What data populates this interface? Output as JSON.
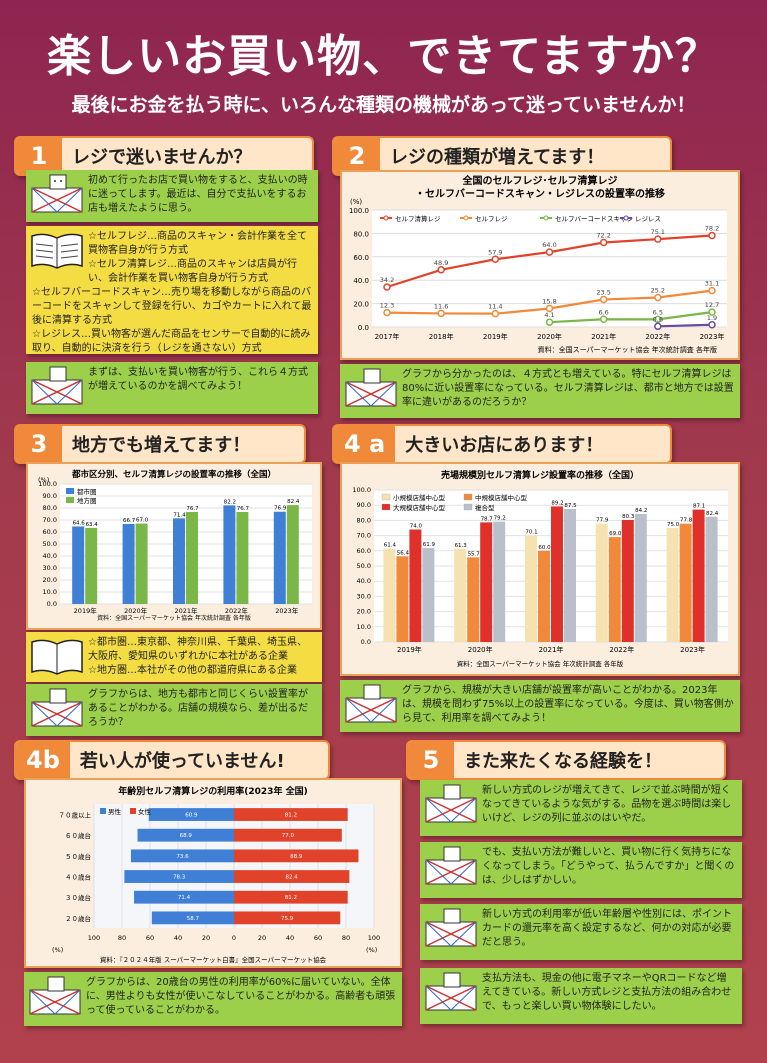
{
  "header": {
    "title": "楽しいお買い物、できてますか？",
    "subtitle": "最後にお金を払う時に、いろんな種類の機械があって迷っていませんか！"
  },
  "s1": {
    "num": "1",
    "title": "レジで迷いませんか？",
    "note1": "初めて行ったお店で買い物をすると、支払いの時に迷ってします。最近は、自分で支払いをするお店も増えたように思う。",
    "defs": [
      "☆セルフレジ…商品のスキャン・会計作業を全て買物客自身が行う方式",
      "☆セルフ清算レジ…商品のスキャンは店員が行い、会計作業を買い物客自身が行う方式",
      "☆セルフバーコードスキャン…売り場を移動しながら商品のバーコードをスキャンして登録を行い、カゴやカートに入れて最後に清算する方式",
      "☆レジレス…買い物客が選んだ商品をセンサーで自動的に読み取り、自動的に決済を行う（レジを通さない）方式"
    ],
    "note2": "まずは、支払いを買い物客が行う、これら４方式が増えているのかを調べてみよう！"
  },
  "s2": {
    "num": "2",
    "title": "レジの種類が増えてます！",
    "note": "グラフから分かったのは、４方式とも増えている。特にセルフ清算レジは80%に近い設置率になっている。セルフ清算レジは、都市と地方では設置率に違いがあるのだろうか？"
  },
  "s3": {
    "num": "3",
    "title": "地方でも増えてます！",
    "defs": [
      "☆都市圏…東京都、神奈川県、千葉県、埼玉県、大阪府、愛知県のいずれかに本社がある企業",
      "☆地方圏…本社がその他の都道府県にある企業"
    ],
    "note": "グラフからは、地方も都市と同じくらい設置率があることがわかる。店舗の規模なら、差が出るだろうか？"
  },
  "s4a": {
    "num": "4 a",
    "title": "大きいお店にあります！",
    "note": "グラフから、規模が大きい店舗が設置率が高いことがわかる。2023年は、規模を問わず75%以上の設置率になっている。今度は、買い物客側から見て、利用率を調べてみよう！"
  },
  "s4b": {
    "num": "4b",
    "title": "若い人が使っていません!",
    "note": "グラフからは、20歳台の男性の利用率が60%に届いていない。全体に、男性よりも女性が使いこなしていることがわかる。高齢者も頑張って使っていることがわかる。"
  },
  "s5": {
    "num": "5",
    "title": "また来たくなる経験を！",
    "notes": [
      "新しい方式のレジが増えてきて、レジで並ぶ時間が短くなってきているような気がする。品物を選ぶ時間は楽しいけど、レジの列に並ぶのはいやだ。",
      "でも、支払い方法が難しいと、買い物に行く気持ちになくなってしまう。「どうやって、払うんですか」と聞くのは、少しはずかしい。",
      "新しい方式の利用率が低い年齢層や性別には、ポイントカードの還元率を高く設定するなど、何かの対応が必要だと思う。",
      "支払方法も、現金の他に電子マネーやQRコードなど増えてきている。新しい方式レジと支払方法の組み合わせで、もっと楽しい買い物体験にしたい。"
    ]
  },
  "colors": {
    "red": "#e0432a",
    "orange": "#f08a3a",
    "green": "#7ab648",
    "purple": "#6a4aa0",
    "blue": "#3f7fd6",
    "gray": "#b9c0cc",
    "pink": "#f08a88"
  },
  "chart_data": [
    {
      "type": "line",
      "title": "全国のセルフレジ･セルフ清算レジ\n・セルフバーコードスキャン・レジレスの設置率の推移",
      "ylabel": "(%)",
      "ylim": [
        0,
        100
      ],
      "x": [
        "2017年",
        "2018年",
        "2019年",
        "2020年",
        "2021年",
        "2022年",
        "2023年"
      ],
      "source": "資料：全国スーパーマーケット協会 年次統計調査 各年版",
      "series": [
        {
          "name": "セルフ清算レジ",
          "values": [
            34.2,
            48.9,
            57.9,
            64.0,
            72.2,
            75.1,
            78.2
          ]
        },
        {
          "name": "セルフレジ",
          "values": [
            12.3,
            11.6,
            11.4,
            15.8,
            23.5,
            25.2,
            31.1
          ]
        },
        {
          "name": "セルフバーコードスキャン",
          "values": [
            null,
            null,
            null,
            4.1,
            6.6,
            6.5,
            12.7
          ]
        },
        {
          "name": "レジレス",
          "values": [
            null,
            null,
            null,
            null,
            null,
            0.6,
            1.9
          ]
        }
      ]
    },
    {
      "type": "bar",
      "title": "都市区分別、セルフ清算レジの設置率の推移（全国）",
      "ylabel": "(%)",
      "ylim": [
        0,
        100
      ],
      "categories": [
        "2019年",
        "2020年",
        "2021年",
        "2022年",
        "2023年"
      ],
      "source": "資料：全国スーパーマーケット協会 年次統計調査 各年版",
      "series": [
        {
          "name": "都市圏",
          "values": [
            64.6,
            66.7,
            71.4,
            82.2,
            76.9
          ]
        },
        {
          "name": "地方圏",
          "values": [
            63.4,
            67.0,
            76.7,
            76.7,
            82.4
          ]
        }
      ]
    },
    {
      "type": "bar",
      "title": "売場規模別セルフ清算レジ設置率の推移（全国）",
      "ylim": [
        0,
        100
      ],
      "categories": [
        "2019年",
        "2020年",
        "2021年",
        "2022年",
        "2023年"
      ],
      "source": "資料：全国スーパーマーケット協会 年次統計調査 各年版",
      "series": [
        {
          "name": "小規模店舗中心型",
          "values": [
            61.4,
            61.3,
            70.1,
            77.9,
            75.0
          ]
        },
        {
          "name": "中規模店舗中心型",
          "values": [
            56.4,
            55.7,
            60.0,
            69.0,
            77.8
          ]
        },
        {
          "name": "大規模店舗中心型",
          "values": [
            74.0,
            78.7,
            89.2,
            80.3,
            87.1
          ]
        },
        {
          "name": "複合型",
          "values": [
            61.9,
            79.2,
            87.5,
            84.2,
            82.4
          ]
        }
      ]
    },
    {
      "type": "bar",
      "title": "年齢別セルフ清算レジの利用率(2023年 全国)",
      "xlabel": "(%)",
      "categories": [
        "７０歳以上",
        "６０歳台",
        "５０歳台",
        "４０歳台",
        "３０歳台",
        "２０歳台"
      ],
      "ticks": [
        "100",
        "80",
        "60",
        "40",
        "20",
        "0",
        "20",
        "40",
        "60",
        "80",
        "100"
      ],
      "source": "資料：『２０２４年版 スーパーマーケット白書』全国スーパーマーケット協会",
      "series": [
        {
          "name": "男性",
          "values": [
            60.9,
            68.9,
            73.6,
            78.3,
            71.4,
            58.7
          ]
        },
        {
          "name": "女性",
          "values": [
            81.2,
            77.0,
            88.9,
            82.4,
            81.2,
            75.9
          ]
        }
      ]
    }
  ]
}
